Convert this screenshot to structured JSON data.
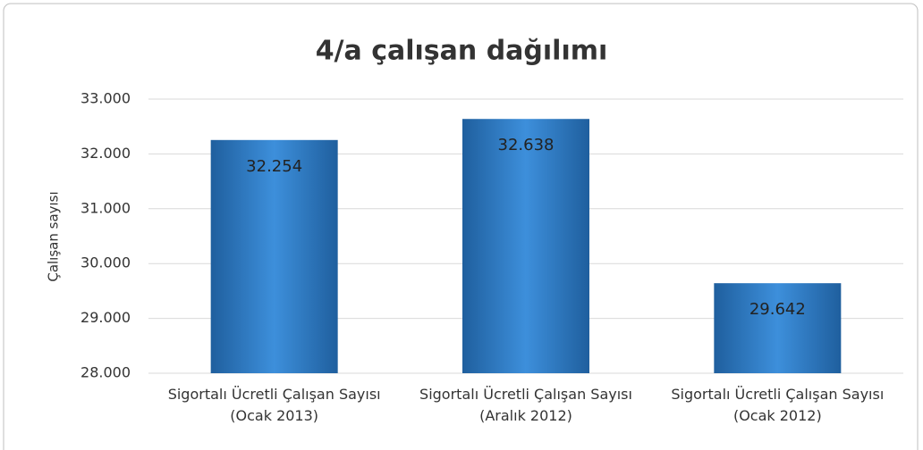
{
  "chart_data": {
    "type": "bar",
    "title": "4/a çalışan dağılımı",
    "y_label": "Çalışan sayısı",
    "categories": [
      "Sigortalı Ücretli Çalışan Sayısı (Ocak 2013)",
      "Sigortalı Ücretli Çalışan Sayısı (Aralık 2012)",
      "Sigortalı Ücretli Çalışan Sayısı (Ocak 2012)"
    ],
    "values": [
      32254,
      32638,
      29642
    ],
    "value_labels": [
      "32.254",
      "32.638",
      "29.642"
    ],
    "color": "#2f7cc4",
    "ylim": [
      28000,
      33000
    ],
    "yticks": [
      {
        "value": 28000,
        "label": "28.000"
      },
      {
        "value": 29000,
        "label": "29.000"
      },
      {
        "value": 30000,
        "label": "30.000"
      },
      {
        "value": 31000,
        "label": "31.000"
      },
      {
        "value": 32000,
        "label": "32.000"
      },
      {
        "value": 33000,
        "label": "33.000"
      }
    ],
    "grid": true
  }
}
